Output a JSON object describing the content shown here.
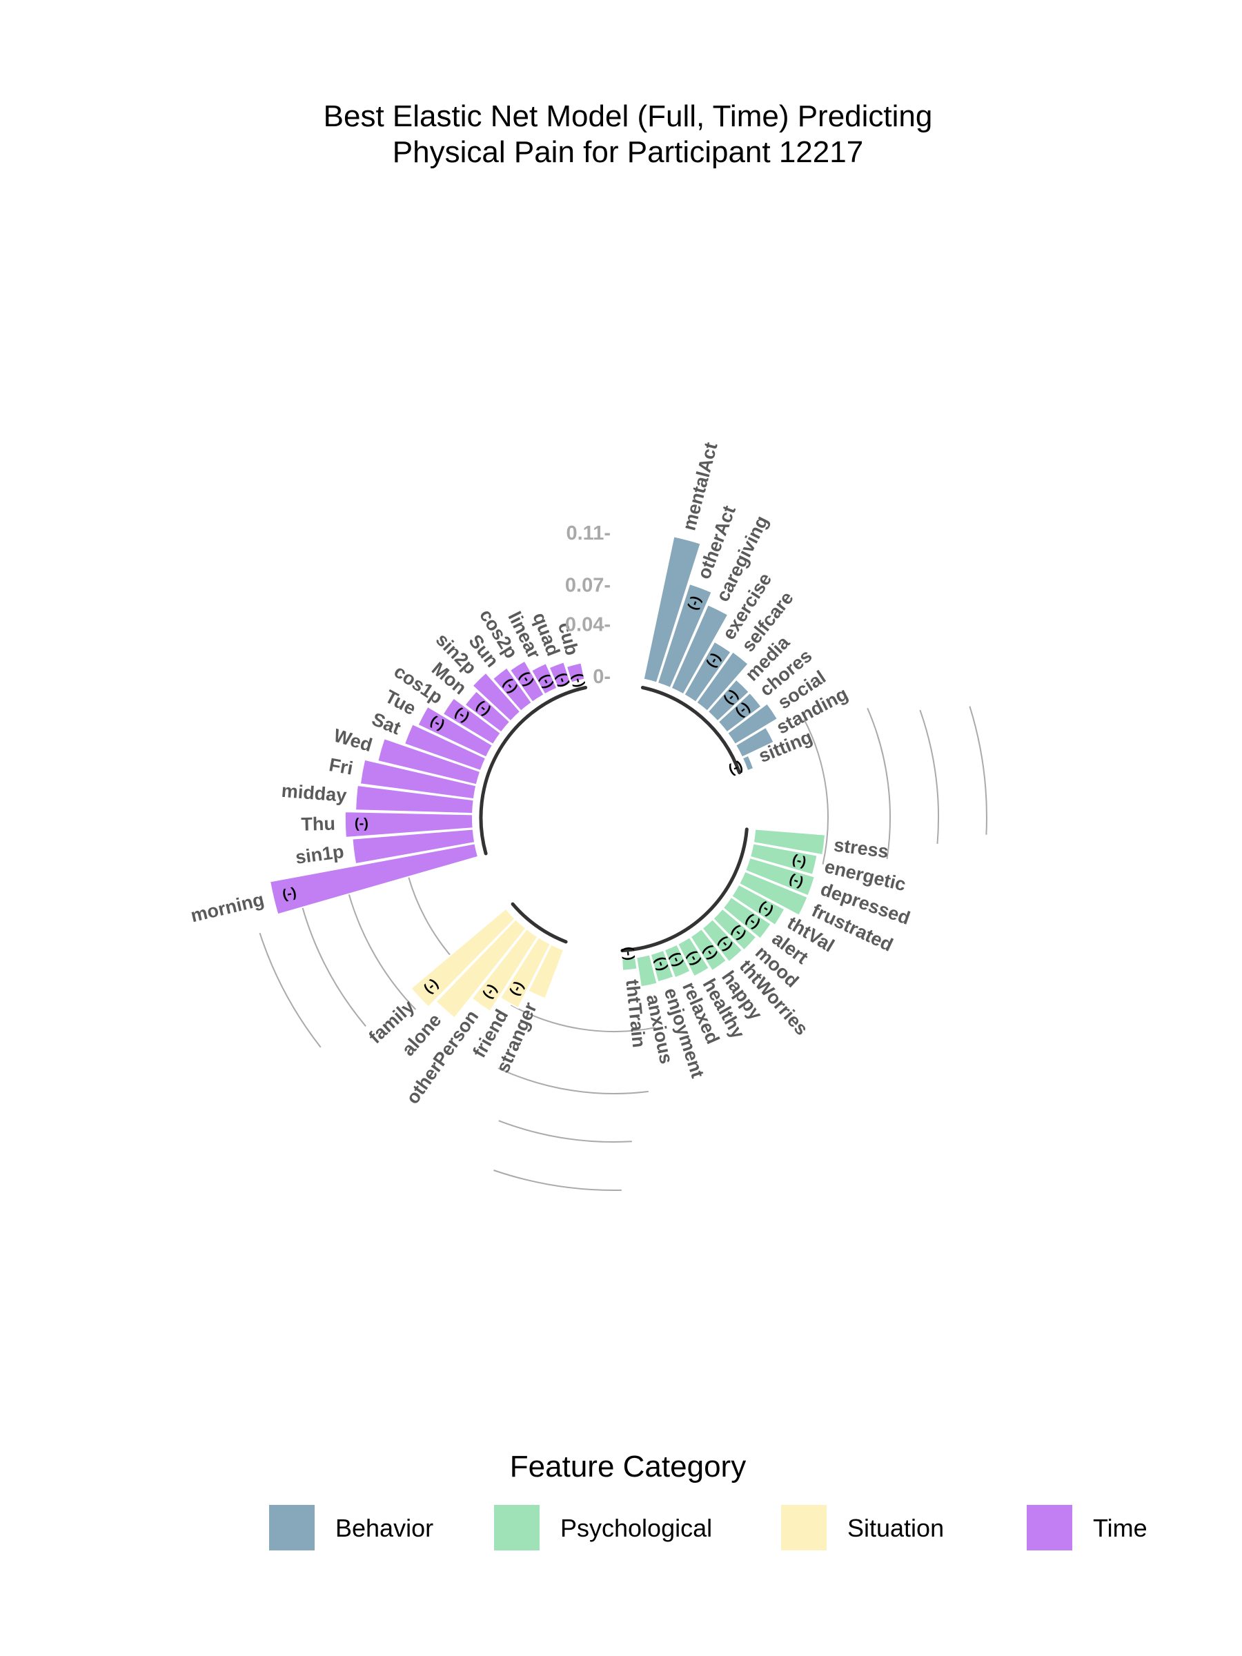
{
  "chart_data": {
    "type": "circular-bar",
    "title": "Best Elastic Net Model (Full, Time) Predicting\nPhysical Pain for Participant 12217",
    "radial_ticks": [
      "0-",
      "0.04-",
      "0.07-",
      "0.11-"
    ],
    "radial_tick_values": [
      0,
      0.04,
      0.07,
      0.11
    ],
    "negative_marker": "(-)",
    "legend": {
      "title": "Feature Category",
      "items": [
        {
          "name": "Behavior",
          "color": "#87a8ba"
        },
        {
          "name": "Psychological",
          "color": "#9fe2b8"
        },
        {
          "name": "Situation",
          "color": "#fdf2bd"
        },
        {
          "name": "Time",
          "color": "#c17ff3"
        }
      ]
    },
    "groups": [
      {
        "category": "Behavior",
        "features": [
          {
            "name": "mentalAct",
            "value": 0.112,
            "negative": false
          },
          {
            "name": "otherAct",
            "value": 0.08,
            "negative": true
          },
          {
            "name": "caregiving",
            "value": 0.07,
            "negative": false
          },
          {
            "name": "exercise",
            "value": 0.047,
            "negative": true
          },
          {
            "name": "selfcare",
            "value": 0.048,
            "negative": false
          },
          {
            "name": "media",
            "value": 0.033,
            "negative": true
          },
          {
            "name": "chores",
            "value": 0.033,
            "negative": true
          },
          {
            "name": "social",
            "value": 0.038,
            "negative": false
          },
          {
            "name": "standing",
            "value": 0.027,
            "negative": false
          },
          {
            "name": "sitting",
            "value": 0.005,
            "negative": true
          }
        ]
      },
      {
        "category": "Psychological",
        "features": [
          {
            "name": "stress",
            "value": 0.054,
            "negative": false
          },
          {
            "name": "energetic",
            "value": 0.05,
            "negative": true
          },
          {
            "name": "depressed",
            "value": 0.052,
            "negative": true
          },
          {
            "name": "frustrated",
            "value": 0.052,
            "negative": false
          },
          {
            "name": "thtVal",
            "value": 0.04,
            "negative": true
          },
          {
            "name": "alert",
            "value": 0.037,
            "negative": true
          },
          {
            "name": "mood",
            "value": 0.034,
            "negative": true
          },
          {
            "name": "thtWorries",
            "value": 0.033,
            "negative": true
          },
          {
            "name": "happy",
            "value": 0.031,
            "negative": true
          },
          {
            "name": "healthy",
            "value": 0.028,
            "negative": true
          },
          {
            "name": "relaxed",
            "value": 0.023,
            "negative": true
          },
          {
            "name": "enjoyment",
            "value": 0.022,
            "negative": true
          },
          {
            "name": "anxious",
            "value": 0.023,
            "negative": false
          },
          {
            "name": "thtTrain",
            "value": 0.009,
            "negative": true
          }
        ]
      },
      {
        "category": "Situation",
        "features": [
          {
            "name": "stranger",
            "value": 0.04,
            "negative": false
          },
          {
            "name": "friend",
            "value": 0.055,
            "negative": true
          },
          {
            "name": "otherPerson",
            "value": 0.068,
            "negative": true
          },
          {
            "name": "alone",
            "value": 0.088,
            "negative": false
          },
          {
            "name": "family",
            "value": 0.095,
            "negative": true
          }
        ]
      },
      {
        "category": "Time",
        "features": [
          {
            "name": "morning",
            "value": 0.16,
            "negative": true
          },
          {
            "name": "sin1p",
            "value": 0.093,
            "negative": false
          },
          {
            "name": "Thu",
            "value": 0.098,
            "negative": true
          },
          {
            "name": "midday",
            "value": 0.09,
            "negative": false
          },
          {
            "name": "Fri",
            "value": 0.088,
            "negative": false
          },
          {
            "name": "Wed",
            "value": 0.078,
            "negative": false
          },
          {
            "name": "Sat",
            "value": 0.062,
            "negative": false
          },
          {
            "name": "Tue",
            "value": 0.058,
            "negative": true
          },
          {
            "name": "cos1p",
            "value": 0.045,
            "negative": true
          },
          {
            "name": "Mon",
            "value": 0.035,
            "negative": true
          },
          {
            "name": "sin2p",
            "value": 0.04,
            "negative": false
          },
          {
            "name": "Sun",
            "value": 0.033,
            "negative": true
          },
          {
            "name": "cos2p",
            "value": 0.03,
            "negative": true
          },
          {
            "name": "linear",
            "value": 0.021,
            "negative": true
          },
          {
            "name": "quad",
            "value": 0.017,
            "negative": true
          },
          {
            "name": "cub",
            "value": 0.013,
            "negative": true
          }
        ]
      }
    ]
  }
}
